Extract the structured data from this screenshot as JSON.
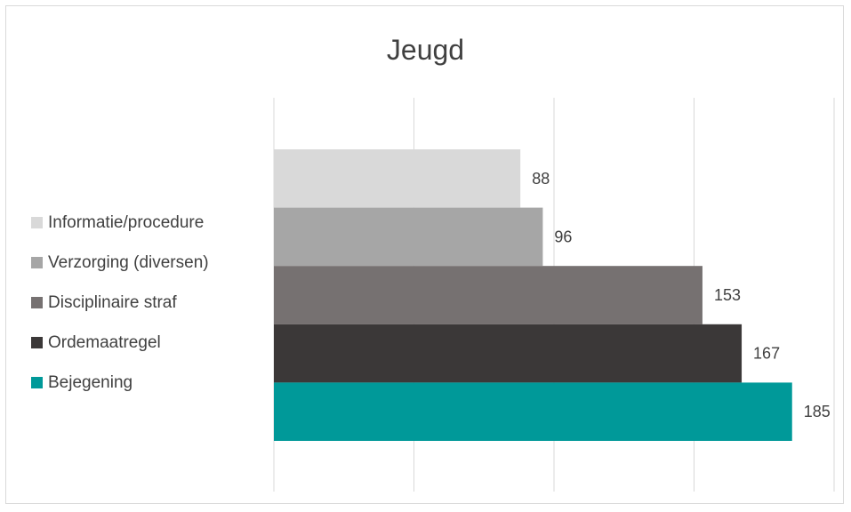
{
  "chart_data": {
    "type": "bar",
    "orientation": "horizontal",
    "title": "Jeugd",
    "categories": [
      "Informatie/procedure",
      "Verzorging (diversen)",
      "Disciplinaire straf",
      "Ordemaatregel",
      "Bejegening"
    ],
    "values": [
      88,
      96,
      153,
      167,
      185
    ],
    "colors": [
      "#d9d9d9",
      "#a6a6a6",
      "#767171",
      "#3b3838",
      "#009999"
    ],
    "xlim": [
      0,
      200
    ],
    "grid": true,
    "legend": "left"
  }
}
